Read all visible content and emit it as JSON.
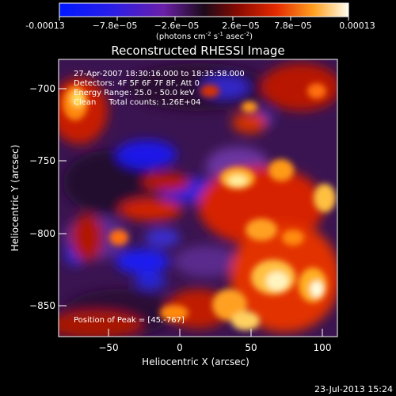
{
  "colorbar": {
    "ticks": [
      "-0.00013",
      "−7.8e−05",
      "−2.6e−05",
      "2.6e−05",
      "7.8e−05",
      "0.00013"
    ],
    "unit_main": "(photons cm",
    "unit_sup1": "-2",
    "unit_mid": " s",
    "unit_sup2": "-1",
    "unit_end": " asec",
    "unit_sup3": "-2",
    "unit_close": ")"
  },
  "plot": {
    "title": "Reconstructed RHESSI Image",
    "xlabel": "Heliocentric X (arcsec)",
    "ylabel": "Heliocentric Y (arcsec)",
    "xticks": [
      "−50",
      "0",
      "50",
      "100"
    ],
    "yticks": [
      "−700",
      "−750",
      "−800",
      "−850"
    ],
    "info_lines": [
      "27-Apr-2007 18:30:16.000 to 18:35:58.000",
      "Detectors: 4F 5F 6F 7F 8F, Att 0",
      "Energy Range: 25.0 - 50.0 keV",
      "Clean     Total counts: 1.26E+04"
    ],
    "peak_text": "Position of Peak = [45,-767]"
  },
  "footer": {
    "timestamp": "23-Jul-2013 15:24"
  }
}
